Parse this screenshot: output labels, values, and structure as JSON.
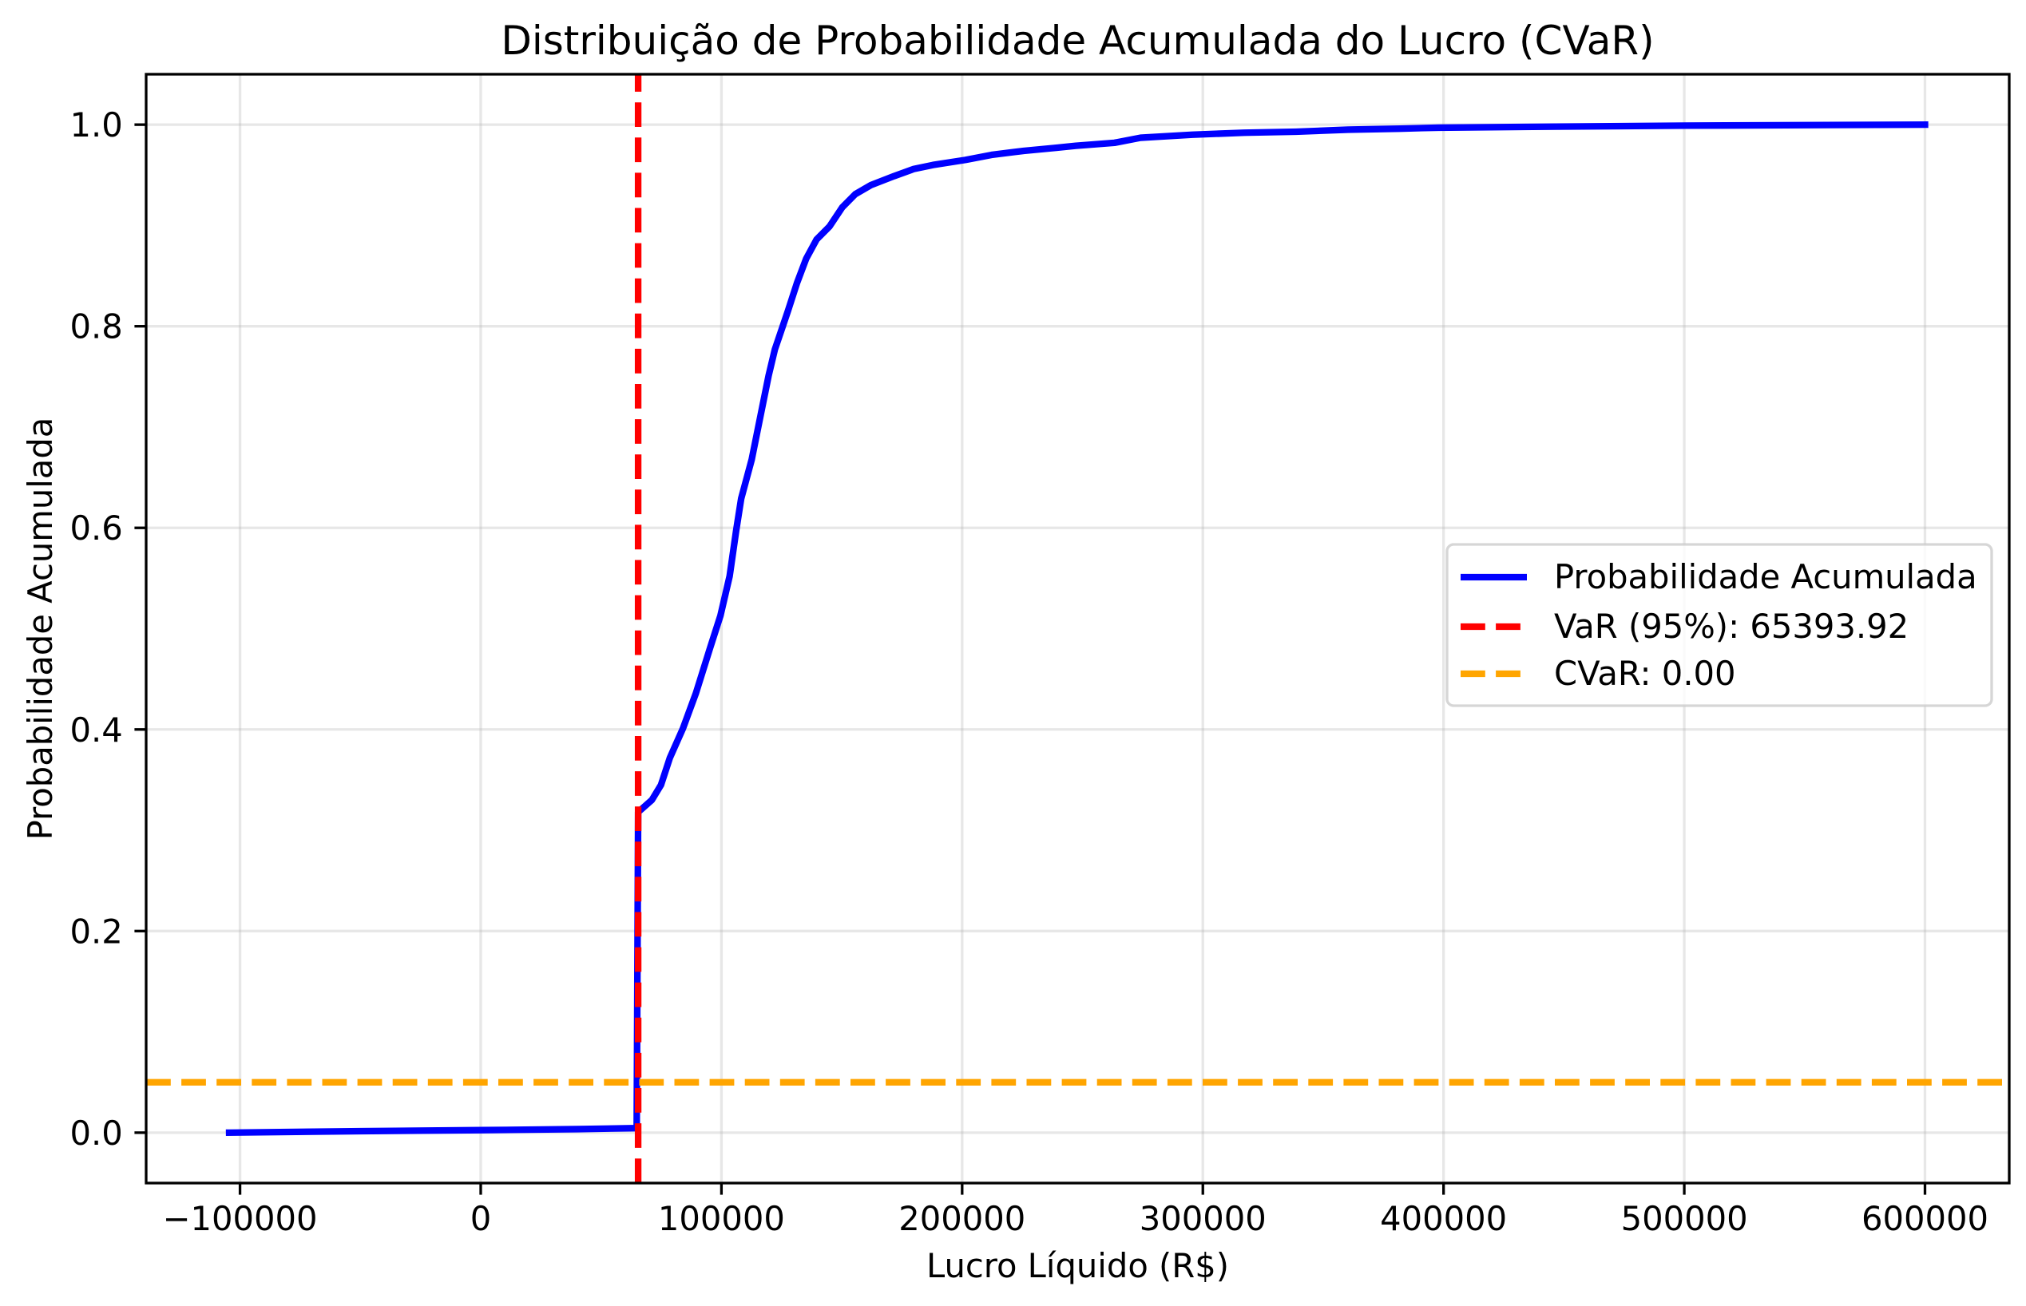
{
  "chart_data": {
    "type": "line",
    "title": "Distribuição de Probabilidade Acumulada do Lucro (CVaR)",
    "xlabel": "Lucro Líquido (R$)",
    "ylabel": "Probabilidade Acumulada",
    "xlim": [
      -139000,
      635000
    ],
    "ylim": [
      -0.05,
      1.05
    ],
    "xticks": [
      -100000,
      0,
      100000,
      200000,
      300000,
      400000,
      500000,
      600000
    ],
    "xtick_labels": [
      "−100000",
      "0",
      "100000",
      "200000",
      "300000",
      "400000",
      "500000",
      "600000"
    ],
    "yticks": [
      0.0,
      0.2,
      0.4,
      0.6,
      0.8,
      1.0
    ],
    "ytick_labels": [
      "0.0",
      "0.2",
      "0.4",
      "0.6",
      "0.8",
      "1.0"
    ],
    "grid": true,
    "legend_position": "center right",
    "series": [
      {
        "name": "Probabilidade Acumulada",
        "color": "#0000ff",
        "x": [
          -104500,
          -50000,
          0,
          40000,
          64800,
          65394,
          71100,
          74900,
          78600,
          84000,
          89400,
          95300,
          99600,
          103400,
          106100,
          108200,
          112600,
          116300,
          119600,
          122200,
          124900,
          127600,
          131400,
          135200,
          139500,
          144900,
          150200,
          155600,
          162100,
          171800,
          179900,
          187900,
          201400,
          212200,
          225600,
          239100,
          247200,
          263300,
          274100,
          295600,
          317200,
          338700,
          360300,
          381800,
          398000,
          446400,
          500300,
          600000
        ],
        "y": [
          0.0,
          0.0015,
          0.0025,
          0.0035,
          0.0045,
          0.318,
          0.33,
          0.345,
          0.372,
          0.401,
          0.436,
          0.481,
          0.513,
          0.552,
          0.597,
          0.629,
          0.668,
          0.712,
          0.751,
          0.777,
          0.796,
          0.815,
          0.843,
          0.867,
          0.886,
          0.899,
          0.918,
          0.931,
          0.94,
          0.949,
          0.956,
          0.96,
          0.965,
          0.97,
          0.974,
          0.977,
          0.979,
          0.982,
          0.987,
          0.99,
          0.992,
          0.993,
          0.995,
          0.996,
          0.997,
          0.998,
          0.999,
          1.0
        ]
      }
    ],
    "vlines": [
      {
        "label": "VaR (95%): 65393.92",
        "x": 65393.92,
        "color": "#ff0000"
      }
    ],
    "hlines": [
      {
        "label": "CVaR: 0.00",
        "y": 0.05,
        "color": "#ffa500"
      }
    ]
  }
}
